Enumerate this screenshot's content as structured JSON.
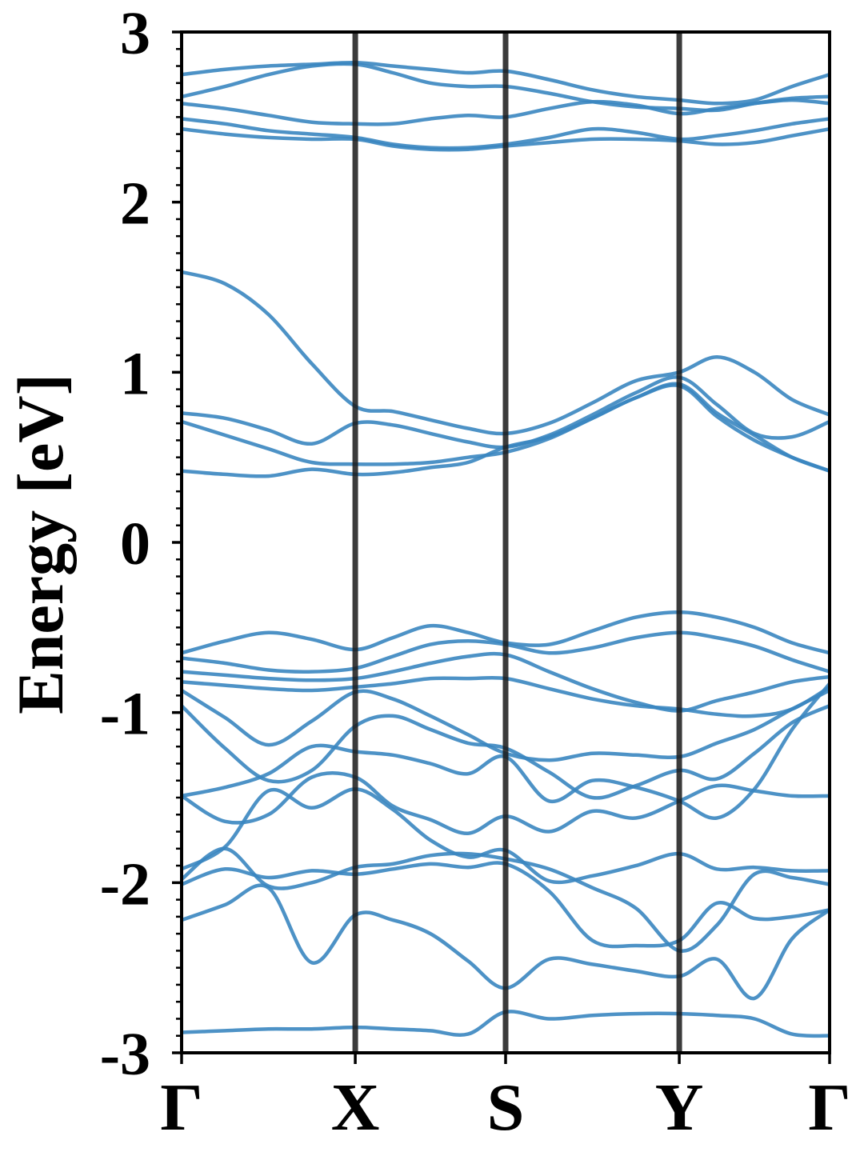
{
  "chart_data": {
    "type": "line",
    "title": "",
    "xlabel": "",
    "ylabel": "Energy [eV]",
    "ylim": [
      -3,
      3
    ],
    "yticks": [
      3,
      2,
      1,
      0,
      -1,
      -2,
      -3
    ],
    "ytick_labels": [
      "3",
      "2",
      "1",
      "0",
      "-1",
      "-2",
      "-3"
    ],
    "yminor_step": 0.1,
    "xlim": [
      0,
      4
    ],
    "kpoints": [
      {
        "label": "Γ",
        "x": 0
      },
      {
        "label": "X",
        "x": 1
      },
      {
        "label": "S",
        "x": 2
      },
      {
        "label": "Y",
        "x": 3
      },
      {
        "label": "Γ",
        "x": 4
      }
    ],
    "kpath_segment_fractions": [
      0.268,
      0.232,
      0.268,
      0.232
    ],
    "grid": false,
    "legend": "none",
    "colors": {
      "band": "#3a86c0",
      "kpoint_line": "#1a1a1a",
      "axis": "#000000"
    },
    "x": [
      0,
      0.25,
      0.5,
      0.75,
      1,
      1.25,
      1.5,
      1.75,
      2,
      2.25,
      2.5,
      2.75,
      3,
      3.25,
      3.5,
      3.75,
      4
    ],
    "series": [
      {
        "values": [
          2.75,
          2.78,
          2.8,
          2.81,
          2.82,
          2.8,
          2.78,
          2.76,
          2.77,
          2.72,
          2.66,
          2.62,
          2.6,
          2.58,
          2.6,
          2.68,
          2.75
        ]
      },
      {
        "values": [
          2.62,
          2.68,
          2.75,
          2.8,
          2.81,
          2.76,
          2.7,
          2.68,
          2.68,
          2.64,
          2.59,
          2.56,
          2.55,
          2.54,
          2.58,
          2.61,
          2.62
        ]
      },
      {
        "values": [
          2.58,
          2.55,
          2.51,
          2.47,
          2.46,
          2.46,
          2.49,
          2.51,
          2.5,
          2.55,
          2.59,
          2.57,
          2.52,
          2.55,
          2.58,
          2.6,
          2.58
        ]
      },
      {
        "values": [
          2.49,
          2.46,
          2.42,
          2.4,
          2.38,
          2.34,
          2.32,
          2.32,
          2.34,
          2.38,
          2.43,
          2.41,
          2.37,
          2.39,
          2.42,
          2.46,
          2.49
        ]
      },
      {
        "values": [
          2.43,
          2.4,
          2.38,
          2.37,
          2.37,
          2.33,
          2.31,
          2.31,
          2.33,
          2.35,
          2.37,
          2.37,
          2.36,
          2.34,
          2.35,
          2.39,
          2.43
        ]
      },
      {
        "values": [
          1.59,
          1.52,
          1.34,
          1.05,
          0.8,
          0.77,
          0.72,
          0.67,
          0.64,
          0.7,
          0.82,
          0.95,
          1.0,
          1.09,
          1.0,
          0.84,
          0.75
        ]
      },
      {
        "values": [
          0.76,
          0.73,
          0.66,
          0.58,
          0.7,
          0.69,
          0.64,
          0.59,
          0.56,
          0.63,
          0.75,
          0.88,
          0.97,
          0.81,
          0.64,
          0.62,
          0.71
        ]
      },
      {
        "values": [
          0.71,
          0.63,
          0.55,
          0.47,
          0.46,
          0.46,
          0.47,
          0.5,
          0.53,
          0.61,
          0.73,
          0.85,
          0.93,
          0.76,
          0.63,
          0.5,
          0.42
        ]
      },
      {
        "values": [
          0.42,
          0.4,
          0.39,
          0.43,
          0.4,
          0.41,
          0.44,
          0.47,
          0.56,
          0.62,
          0.73,
          0.85,
          0.92,
          0.74,
          0.6,
          0.5,
          0.42
        ]
      },
      {
        "values": [
          -0.65,
          -0.58,
          -0.53,
          -0.57,
          -0.63,
          -0.56,
          -0.49,
          -0.53,
          -0.59,
          -0.6,
          -0.52,
          -0.44,
          -0.41,
          -0.44,
          -0.5,
          -0.59,
          -0.65
        ]
      },
      {
        "values": [
          -0.68,
          -0.71,
          -0.75,
          -0.76,
          -0.74,
          -0.67,
          -0.6,
          -0.58,
          -0.6,
          -0.65,
          -0.62,
          -0.56,
          -0.53,
          -0.56,
          -0.61,
          -0.69,
          -0.76
        ]
      },
      {
        "values": [
          -0.76,
          -0.78,
          -0.8,
          -0.81,
          -0.8,
          -0.76,
          -0.71,
          -0.67,
          -0.66,
          -0.76,
          -0.86,
          -0.94,
          -0.99,
          -0.93,
          -0.88,
          -0.82,
          -0.79
        ]
      },
      {
        "values": [
          -0.82,
          -0.84,
          -0.86,
          -0.87,
          -0.85,
          -0.83,
          -0.8,
          -0.8,
          -0.8,
          -0.86,
          -0.92,
          -0.96,
          -0.98,
          -1.01,
          -1.02,
          -0.98,
          -0.85
        ]
      },
      {
        "values": [
          -0.87,
          -1.03,
          -1.19,
          -1.05,
          -0.88,
          -0.92,
          -1.02,
          -1.13,
          -1.24,
          -1.28,
          -1.24,
          -1.25,
          -1.26,
          -1.18,
          -1.1,
          -0.98,
          -0.87
        ]
      },
      {
        "values": [
          -0.96,
          -1.21,
          -1.4,
          -1.34,
          -1.08,
          -1.02,
          -1.1,
          -1.18,
          -1.21,
          -1.35,
          -1.5,
          -1.43,
          -1.34,
          -1.39,
          -1.24,
          -1.06,
          -0.96
        ]
      },
      {
        "values": [
          -1.49,
          -1.44,
          -1.36,
          -1.2,
          -1.23,
          -1.25,
          -1.3,
          -1.36,
          -1.26,
          -1.52,
          -1.4,
          -1.44,
          -1.52,
          -1.62,
          -1.45,
          -1.1,
          -0.83
        ]
      },
      {
        "values": [
          -1.49,
          -1.64,
          -1.6,
          -1.38,
          -1.38,
          -1.55,
          -1.63,
          -1.71,
          -1.61,
          -1.7,
          -1.58,
          -1.62,
          -1.52,
          -1.43,
          -1.46,
          -1.49,
          -1.49
        ]
      },
      {
        "values": [
          -1.92,
          -1.79,
          -1.46,
          -1.56,
          -1.45,
          -1.57,
          -1.75,
          -1.85,
          -1.81,
          -1.99,
          -1.96,
          -1.9,
          -1.83,
          -1.92,
          -1.91,
          -1.93,
          -1.93
        ]
      },
      {
        "values": [
          -1.98,
          -1.8,
          -2.02,
          -2.0,
          -1.91,
          -1.89,
          -1.84,
          -1.83,
          -1.86,
          -1.92,
          -2.03,
          -2.15,
          -2.4,
          -2.25,
          -1.95,
          -1.97,
          -2.01
        ]
      },
      {
        "values": [
          -2.01,
          -1.92,
          -1.97,
          -1.93,
          -1.95,
          -1.92,
          -1.89,
          -1.91,
          -1.89,
          -2.05,
          -2.34,
          -2.37,
          -2.34,
          -2.12,
          -2.21,
          -2.2,
          -2.16
        ]
      },
      {
        "values": [
          -2.22,
          -2.13,
          -2.03,
          -2.47,
          -2.19,
          -2.22,
          -2.3,
          -2.46,
          -2.62,
          -2.45,
          -2.48,
          -2.52,
          -2.55,
          -2.45,
          -2.68,
          -2.33,
          -2.16
        ]
      },
      {
        "values": [
          -2.88,
          -2.87,
          -2.86,
          -2.86,
          -2.85,
          -2.86,
          -2.87,
          -2.89,
          -2.76,
          -2.8,
          -2.78,
          -2.77,
          -2.77,
          -2.78,
          -2.8,
          -2.89,
          -2.9
        ]
      }
    ]
  }
}
